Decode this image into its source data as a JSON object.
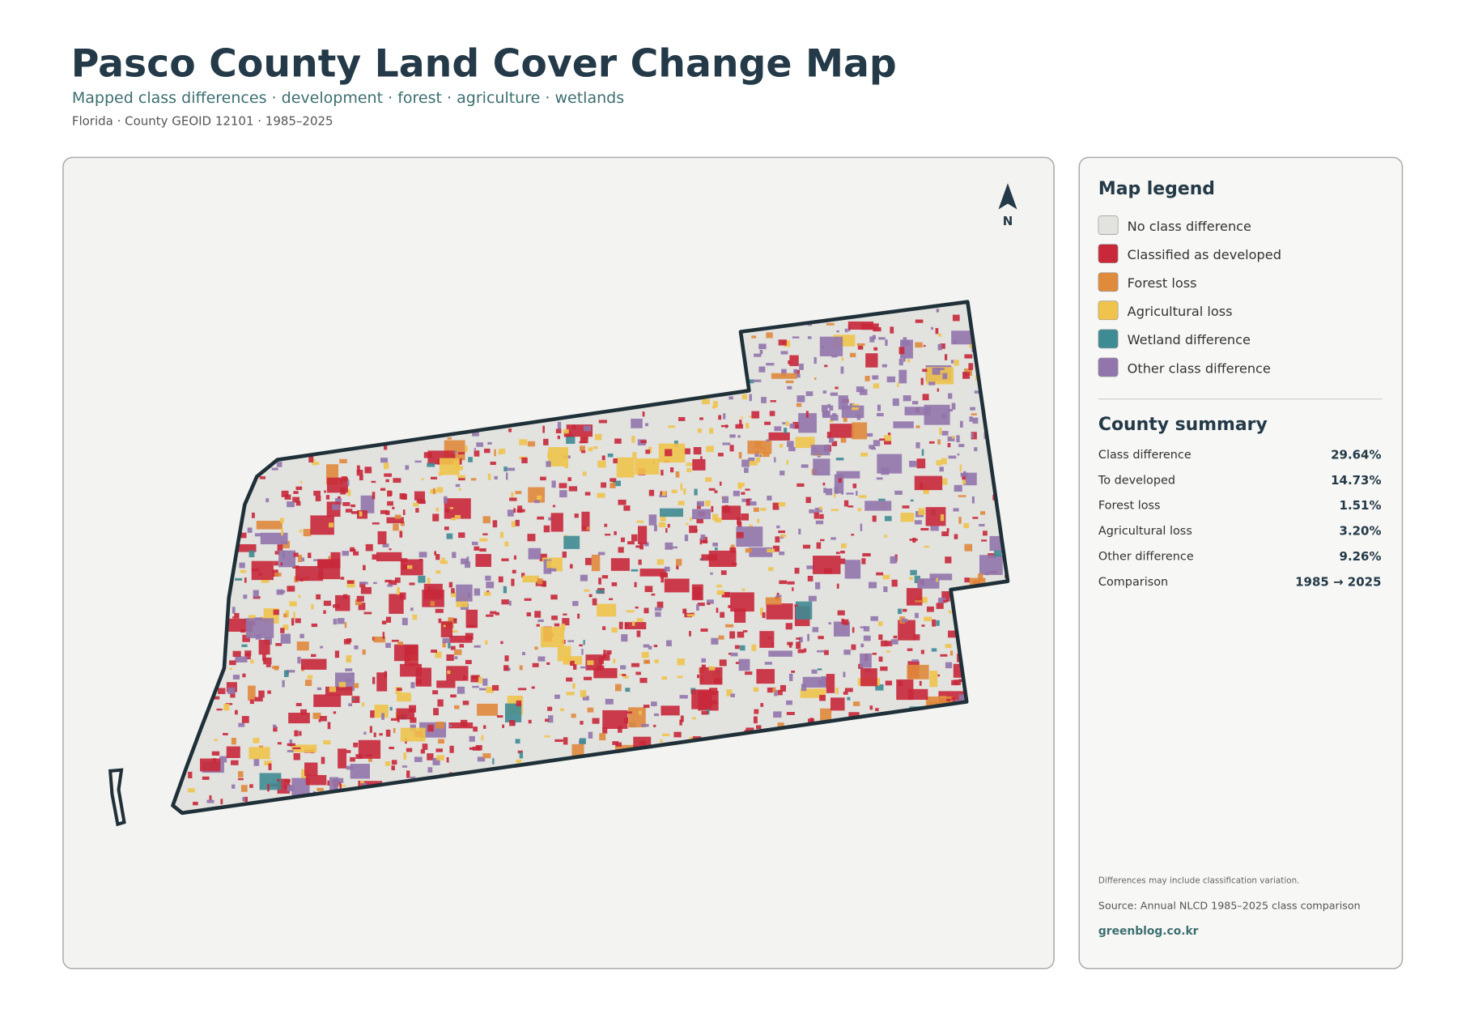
{
  "header": {
    "title": "Pasco County Land Cover Change Map",
    "subtitle": "Mapped class differences · development · forest · agriculture · wetlands",
    "meta": "Florida · County GEOID 12101 · 1985–2025"
  },
  "map": {
    "north_label": "N"
  },
  "legend": {
    "title": "Map legend",
    "items": [
      {
        "label": "No class difference",
        "color": "#e2e2df"
      },
      {
        "label": "Classified as developed",
        "color": "#c8283a"
      },
      {
        "label": "Forest loss",
        "color": "#e08a3c"
      },
      {
        "label": "Agricultural loss",
        "color": "#f0c44c"
      },
      {
        "label": "Wetland difference",
        "color": "#3f8b94"
      },
      {
        "label": "Other class difference",
        "color": "#9275ac"
      }
    ]
  },
  "summary": {
    "title": "County summary",
    "rows": [
      {
        "label": "Class difference",
        "value": "29.64%"
      },
      {
        "label": "To developed",
        "value": "14.73%"
      },
      {
        "label": "Forest loss",
        "value": "1.51%"
      },
      {
        "label": "Agricultural loss",
        "value": "3.20%"
      },
      {
        "label": "Other difference",
        "value": "9.26%"
      },
      {
        "label": "Comparison",
        "value": "1985 → 2025"
      }
    ]
  },
  "footer": {
    "note": "Differences may include classification variation.",
    "source": "Source: Annual NLCD 1985–2025 class comparison",
    "brand": "greenblog.co.kr"
  }
}
